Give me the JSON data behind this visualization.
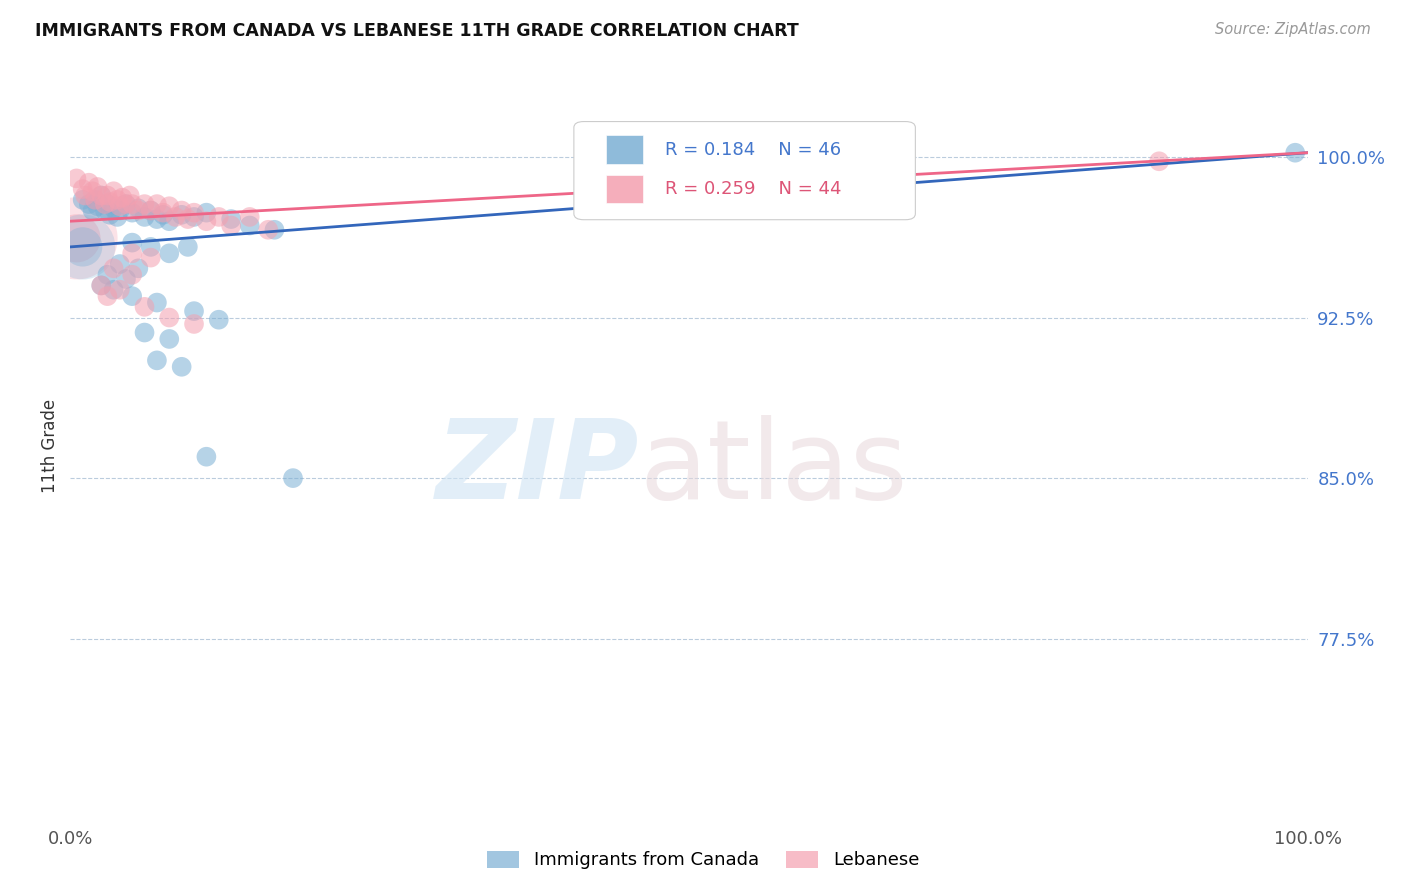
{
  "title": "IMMIGRANTS FROM CANADA VS LEBANESE 11TH GRADE CORRELATION CHART",
  "source": "Source: ZipAtlas.com",
  "ylabel": "11th Grade",
  "ytick_labels": [
    "100.0%",
    "92.5%",
    "85.0%",
    "77.5%"
  ],
  "ytick_values": [
    1.0,
    0.925,
    0.85,
    0.775
  ],
  "xlim": [
    0.0,
    1.0
  ],
  "ylim": [
    0.69,
    1.04
  ],
  "blue_color": "#7BAFD4",
  "pink_color": "#F4A0B0",
  "trendline_blue_color": "#3366BB",
  "trendline_pink_color": "#EE6688",
  "blue_trendline": [
    [
      0.0,
      0.958
    ],
    [
      1.0,
      1.002
    ]
  ],
  "pink_trendline": [
    [
      0.0,
      0.97
    ],
    [
      1.0,
      1.002
    ]
  ],
  "blue_scatter": [
    [
      0.01,
      0.98
    ],
    [
      0.015,
      0.978
    ],
    [
      0.018,
      0.975
    ],
    [
      0.02,
      0.98
    ],
    [
      0.022,
      0.977
    ],
    [
      0.025,
      0.982
    ],
    [
      0.028,
      0.975
    ],
    [
      0.03,
      0.978
    ],
    [
      0.032,
      0.973
    ],
    [
      0.035,
      0.976
    ],
    [
      0.038,
      0.972
    ],
    [
      0.04,
      0.975
    ],
    [
      0.045,
      0.978
    ],
    [
      0.05,
      0.974
    ],
    [
      0.055,
      0.976
    ],
    [
      0.06,
      0.972
    ],
    [
      0.065,
      0.975
    ],
    [
      0.07,
      0.971
    ],
    [
      0.075,
      0.973
    ],
    [
      0.08,
      0.97
    ],
    [
      0.09,
      0.973
    ],
    [
      0.1,
      0.972
    ],
    [
      0.11,
      0.974
    ],
    [
      0.13,
      0.971
    ],
    [
      0.145,
      0.968
    ],
    [
      0.165,
      0.966
    ],
    [
      0.05,
      0.96
    ],
    [
      0.065,
      0.958
    ],
    [
      0.08,
      0.955
    ],
    [
      0.095,
      0.958
    ],
    [
      0.04,
      0.95
    ],
    [
      0.055,
      0.948
    ],
    [
      0.03,
      0.945
    ],
    [
      0.045,
      0.943
    ],
    [
      0.025,
      0.94
    ],
    [
      0.035,
      0.938
    ],
    [
      0.05,
      0.935
    ],
    [
      0.07,
      0.932
    ],
    [
      0.1,
      0.928
    ],
    [
      0.12,
      0.924
    ],
    [
      0.06,
      0.918
    ],
    [
      0.08,
      0.915
    ],
    [
      0.07,
      0.905
    ],
    [
      0.09,
      0.902
    ],
    [
      0.11,
      0.86
    ],
    [
      0.18,
      0.85
    ],
    [
      0.99,
      1.002
    ]
  ],
  "pink_scatter": [
    [
      0.005,
      0.99
    ],
    [
      0.01,
      0.985
    ],
    [
      0.012,
      0.982
    ],
    [
      0.015,
      0.988
    ],
    [
      0.018,
      0.984
    ],
    [
      0.02,
      0.98
    ],
    [
      0.022,
      0.986
    ],
    [
      0.025,
      0.982
    ],
    [
      0.028,
      0.978
    ],
    [
      0.03,
      0.982
    ],
    [
      0.032,
      0.979
    ],
    [
      0.035,
      0.984
    ],
    [
      0.038,
      0.98
    ],
    [
      0.04,
      0.977
    ],
    [
      0.042,
      0.981
    ],
    [
      0.045,
      0.978
    ],
    [
      0.048,
      0.982
    ],
    [
      0.05,
      0.978
    ],
    [
      0.055,
      0.975
    ],
    [
      0.06,
      0.978
    ],
    [
      0.065,
      0.975
    ],
    [
      0.07,
      0.978
    ],
    [
      0.075,
      0.974
    ],
    [
      0.08,
      0.977
    ],
    [
      0.085,
      0.972
    ],
    [
      0.09,
      0.975
    ],
    [
      0.095,
      0.971
    ],
    [
      0.1,
      0.974
    ],
    [
      0.11,
      0.97
    ],
    [
      0.12,
      0.972
    ],
    [
      0.13,
      0.968
    ],
    [
      0.145,
      0.972
    ],
    [
      0.16,
      0.966
    ],
    [
      0.05,
      0.955
    ],
    [
      0.065,
      0.953
    ],
    [
      0.035,
      0.948
    ],
    [
      0.05,
      0.945
    ],
    [
      0.025,
      0.94
    ],
    [
      0.04,
      0.938
    ],
    [
      0.03,
      0.935
    ],
    [
      0.06,
      0.93
    ],
    [
      0.08,
      0.925
    ],
    [
      0.1,
      0.922
    ],
    [
      0.88,
      0.998
    ]
  ],
  "large_pink_bubble": [
    0.005,
    0.962
  ],
  "large_blue_bubble": [
    0.01,
    0.958
  ]
}
